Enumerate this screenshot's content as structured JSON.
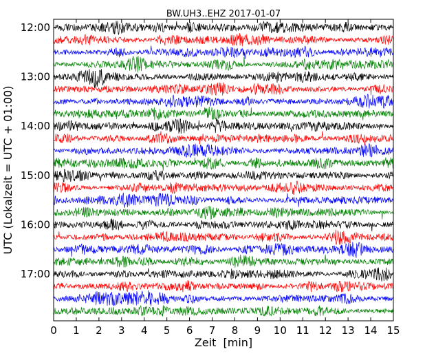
{
  "chart_data": {
    "type": "line",
    "subtype": "helicorder",
    "title": "BW.UH3..EHZ 2017-01-07",
    "xlabel": "Zeit  [min]",
    "ylabel": "UTC (Lokalzeit = UTC + 01:00)",
    "xlim": [
      0,
      15
    ],
    "x_ticks": [
      "0",
      "1",
      "2",
      "3",
      "4",
      "5",
      "6",
      "7",
      "8",
      "9",
      "10",
      "11",
      "12",
      "13",
      "14",
      "15"
    ],
    "y_ticks": [
      "12:00",
      "13:00",
      "14:00",
      "15:00",
      "16:00",
      "17:00"
    ],
    "trace_start_utc": "12:00",
    "trace_end_utc": "18:00",
    "trace_interval_min": 15,
    "trace_count": 24,
    "trace_color_cycle": [
      "#000000",
      "#ff0000",
      "#0000ff",
      "#008000"
    ],
    "grid": false,
    "legend": "none"
  }
}
